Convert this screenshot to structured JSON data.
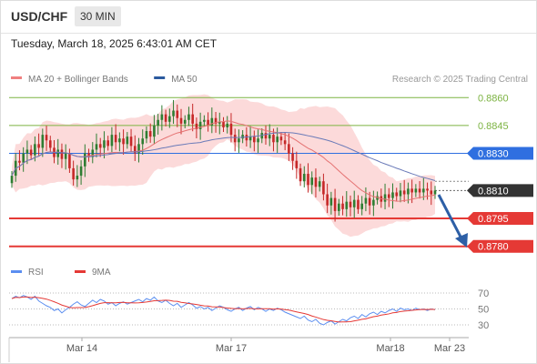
{
  "header": {
    "pair": "USD/CHF",
    "timeframe": "30 MIN",
    "datetime": "Tuesday, March 18, 2025 6:43:01 AM CET"
  },
  "credit": "Research © 2025 Trading Central",
  "colors": {
    "resistance": "#7cb342",
    "pivot": "#2f6fe0",
    "support": "#e53935",
    "last_price": "#333333",
    "arrow": "#2d5fa6",
    "candle_up": "#2e7d32",
    "candle_down": "#c62828",
    "bollinger_fill": "#fbd3d3",
    "ma20": "#e57373",
    "ma50": "#6a7ab8",
    "rsi": "#5b8ef0",
    "rsi_ma": "#e53935"
  },
  "chart_data": [
    {
      "type": "candlestick",
      "legend_position": "top-left",
      "legend": [
        {
          "name": "MA 20 + Bollinger Bands",
          "color": "#f08080"
        },
        {
          "name": "MA 50",
          "color": "#2b5a9e"
        }
      ],
      "x_ticks": [
        "Mar 14",
        "Mar 17",
        "Mar18",
        "Mar 23"
      ],
      "ylim": [
        0.8773,
        0.8866
      ],
      "price_levels": [
        {
          "value": 0.886,
          "label": "0.8860",
          "kind": "resistance"
        },
        {
          "value": 0.8845,
          "label": "0.8845",
          "kind": "resistance"
        },
        {
          "value": 0.883,
          "label": "0.8830",
          "kind": "pivot"
        },
        {
          "value": 0.881,
          "label": "0.8810",
          "kind": "last"
        },
        {
          "value": 0.8795,
          "label": "0.8795",
          "kind": "support"
        },
        {
          "value": 0.878,
          "label": "0.8780",
          "kind": "support"
        }
      ],
      "close": [
        0.8818,
        0.8826,
        0.8825,
        0.883,
        0.8832,
        0.8829,
        0.8835,
        0.8833,
        0.884,
        0.8837,
        0.8833,
        0.8828,
        0.8832,
        0.8827,
        0.883,
        0.8822,
        0.8816,
        0.8818,
        0.8823,
        0.883,
        0.8828,
        0.8832,
        0.8835,
        0.8833,
        0.8837,
        0.8834,
        0.884,
        0.8836,
        0.8838,
        0.8835,
        0.8839,
        0.8834,
        0.883,
        0.8835,
        0.8838,
        0.8842,
        0.8839,
        0.8845,
        0.8848,
        0.8851,
        0.8847,
        0.885,
        0.8853,
        0.8849,
        0.8846,
        0.8848,
        0.8851,
        0.8846,
        0.8843,
        0.8847,
        0.8848,
        0.8845,
        0.8849,
        0.8846,
        0.8847,
        0.8844,
        0.8846,
        0.884,
        0.8836,
        0.8838,
        0.884,
        0.8837,
        0.8839,
        0.8836,
        0.8838,
        0.8841,
        0.8838,
        0.884,
        0.8836,
        0.8839,
        0.8837,
        0.8835,
        0.883,
        0.8826,
        0.8822,
        0.8815,
        0.8819,
        0.8813,
        0.8817,
        0.8812,
        0.8815,
        0.8808,
        0.8802,
        0.8806,
        0.8799,
        0.8803,
        0.88,
        0.8804,
        0.8801,
        0.8805,
        0.88,
        0.8803,
        0.8806,
        0.8802,
        0.8805,
        0.8807,
        0.8804,
        0.8808,
        0.8806,
        0.8809,
        0.8807,
        0.881,
        0.8808,
        0.8811,
        0.8809,
        0.8811,
        0.8809,
        0.8811,
        0.881,
        0.8808,
        0.881
      ]
    },
    {
      "type": "line",
      "legend": [
        {
          "name": "RSI",
          "color": "#5b8ef0"
        },
        {
          "name": "9MA",
          "color": "#e53935"
        }
      ],
      "ylim": [
        20,
        80
      ],
      "y_ticks": [
        70,
        50,
        30
      ],
      "rsi": [
        63,
        66,
        64,
        67,
        65,
        62,
        66,
        60,
        57,
        54,
        52,
        48,
        50,
        45,
        49,
        52,
        56,
        59,
        55,
        53,
        57,
        61,
        58,
        62,
        60,
        56,
        58,
        54,
        57,
        59,
        56,
        58,
        60,
        62,
        59,
        63,
        61,
        65,
        60,
        58,
        61,
        57,
        54,
        57,
        52,
        55,
        58,
        55,
        51,
        53,
        50,
        52,
        48,
        51,
        54,
        52,
        49,
        47,
        50,
        52,
        48,
        51,
        53,
        49,
        52,
        50,
        47,
        50,
        48,
        51,
        49,
        46,
        44,
        42,
        40,
        38,
        41,
        36,
        34,
        37,
        32,
        30,
        33,
        35,
        31,
        34,
        37,
        35,
        39,
        41,
        38,
        43,
        40,
        44,
        46,
        43,
        47,
        45,
        48,
        50,
        47,
        51,
        49,
        50,
        48,
        51,
        49,
        50,
        48,
        50,
        49
      ]
    }
  ]
}
